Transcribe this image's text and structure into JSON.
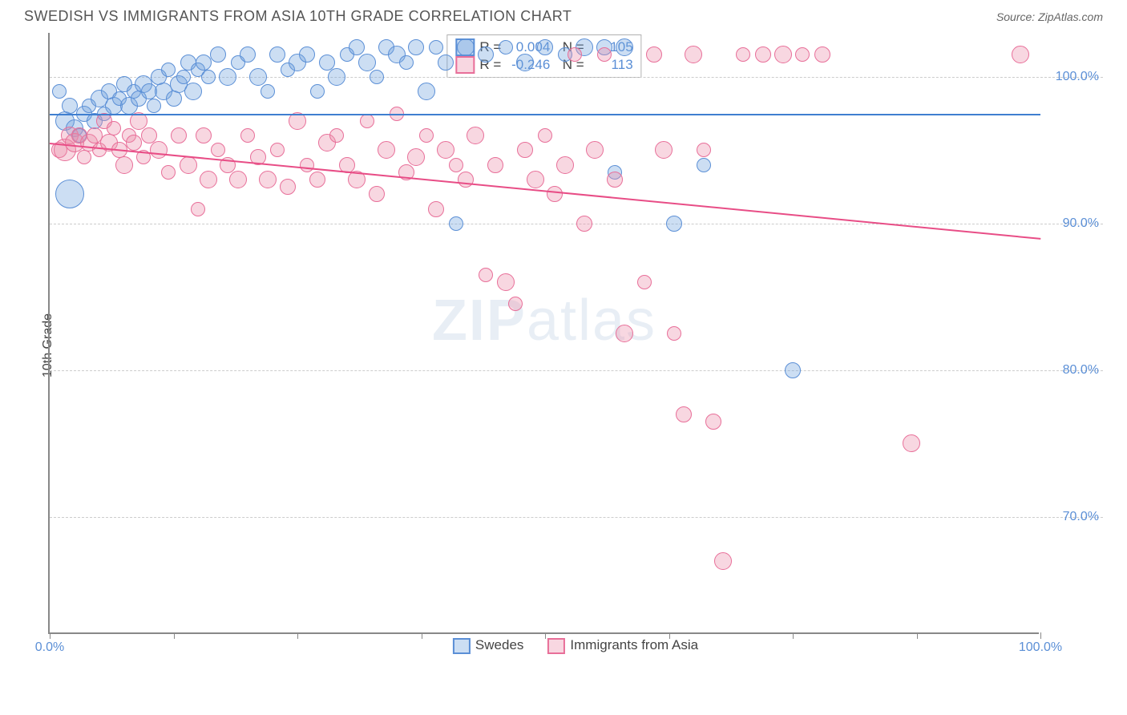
{
  "title": "SWEDISH VS IMMIGRANTS FROM ASIA 10TH GRADE CORRELATION CHART",
  "source": "Source: ZipAtlas.com",
  "y_axis_label": "10th Grade",
  "watermark": "ZIPatlas",
  "chart": {
    "type": "scatter",
    "xlim": [
      0,
      100
    ],
    "ylim": [
      62,
      103
    ],
    "y_ticks": [
      70,
      80,
      90,
      100
    ],
    "y_tick_labels": [
      "70.0%",
      "80.0%",
      "90.0%",
      "100.0%"
    ],
    "x_ticks": [
      0,
      12.5,
      25,
      37.5,
      50,
      62.5,
      75,
      87.5,
      100
    ],
    "x_tick_labels_shown": {
      "0": "0.0%",
      "100": "100.0%"
    },
    "grid_color": "#cccccc",
    "axis_color": "#888888",
    "background_color": "#ffffff",
    "tick_label_color": "#5b8fd6",
    "tick_label_fontsize": 16
  },
  "series": [
    {
      "name": "Swedes",
      "fill_color": "rgba(110, 160, 220, 0.35)",
      "stroke_color": "#5b8fd6",
      "R": "0.004",
      "N": "105",
      "trend": {
        "y_at_x0": 97.5,
        "y_at_x100": 97.5,
        "color": "#3f7fd0"
      },
      "points": [
        {
          "x": 1,
          "y": 99,
          "r": 9
        },
        {
          "x": 1.5,
          "y": 97,
          "r": 12
        },
        {
          "x": 2,
          "y": 98,
          "r": 10
        },
        {
          "x": 2,
          "y": 92,
          "r": 18
        },
        {
          "x": 2.5,
          "y": 96.5,
          "r": 11
        },
        {
          "x": 3,
          "y": 96,
          "r": 9
        },
        {
          "x": 3.5,
          "y": 97.5,
          "r": 10
        },
        {
          "x": 4,
          "y": 98,
          "r": 9
        },
        {
          "x": 4.5,
          "y": 97,
          "r": 10
        },
        {
          "x": 5,
          "y": 98.5,
          "r": 11
        },
        {
          "x": 5.5,
          "y": 97.5,
          "r": 9
        },
        {
          "x": 6,
          "y": 99,
          "r": 10
        },
        {
          "x": 6.5,
          "y": 98,
          "r": 11
        },
        {
          "x": 7,
          "y": 98.5,
          "r": 9
        },
        {
          "x": 7.5,
          "y": 99.5,
          "r": 10
        },
        {
          "x": 8,
          "y": 98,
          "r": 11
        },
        {
          "x": 8.5,
          "y": 99,
          "r": 9
        },
        {
          "x": 9,
          "y": 98.5,
          "r": 10
        },
        {
          "x": 9.5,
          "y": 99.5,
          "r": 11
        },
        {
          "x": 10,
          "y": 99,
          "r": 10
        },
        {
          "x": 10.5,
          "y": 98,
          "r": 9
        },
        {
          "x": 11,
          "y": 100,
          "r": 10
        },
        {
          "x": 11.5,
          "y": 99,
          "r": 11
        },
        {
          "x": 12,
          "y": 100.5,
          "r": 9
        },
        {
          "x": 12.5,
          "y": 98.5,
          "r": 10
        },
        {
          "x": 13,
          "y": 99.5,
          "r": 11
        },
        {
          "x": 13.5,
          "y": 100,
          "r": 9
        },
        {
          "x": 14,
          "y": 101,
          "r": 10
        },
        {
          "x": 14.5,
          "y": 99,
          "r": 11
        },
        {
          "x": 15,
          "y": 100.5,
          "r": 9
        },
        {
          "x": 15.5,
          "y": 101,
          "r": 10
        },
        {
          "x": 16,
          "y": 100,
          "r": 9
        },
        {
          "x": 17,
          "y": 101.5,
          "r": 10
        },
        {
          "x": 18,
          "y": 100,
          "r": 11
        },
        {
          "x": 19,
          "y": 101,
          "r": 9
        },
        {
          "x": 20,
          "y": 101.5,
          "r": 10
        },
        {
          "x": 21,
          "y": 100,
          "r": 11
        },
        {
          "x": 22,
          "y": 99,
          "r": 9
        },
        {
          "x": 23,
          "y": 101.5,
          "r": 10
        },
        {
          "x": 24,
          "y": 100.5,
          "r": 9
        },
        {
          "x": 25,
          "y": 101,
          "r": 11
        },
        {
          "x": 26,
          "y": 101.5,
          "r": 10
        },
        {
          "x": 27,
          "y": 99,
          "r": 9
        },
        {
          "x": 28,
          "y": 101,
          "r": 10
        },
        {
          "x": 29,
          "y": 100,
          "r": 11
        },
        {
          "x": 30,
          "y": 101.5,
          "r": 9
        },
        {
          "x": 31,
          "y": 102,
          "r": 10
        },
        {
          "x": 32,
          "y": 101,
          "r": 11
        },
        {
          "x": 33,
          "y": 100,
          "r": 9
        },
        {
          "x": 34,
          "y": 102,
          "r": 10
        },
        {
          "x": 35,
          "y": 101.5,
          "r": 11
        },
        {
          "x": 36,
          "y": 101,
          "r": 9
        },
        {
          "x": 37,
          "y": 102,
          "r": 10
        },
        {
          "x": 38,
          "y": 99,
          "r": 11
        },
        {
          "x": 39,
          "y": 102,
          "r": 9
        },
        {
          "x": 40,
          "y": 101,
          "r": 10
        },
        {
          "x": 41,
          "y": 90,
          "r": 9
        },
        {
          "x": 42,
          "y": 102,
          "r": 11
        },
        {
          "x": 44,
          "y": 101.5,
          "r": 10
        },
        {
          "x": 46,
          "y": 102,
          "r": 9
        },
        {
          "x": 48,
          "y": 101,
          "r": 11
        },
        {
          "x": 50,
          "y": 102,
          "r": 10
        },
        {
          "x": 52,
          "y": 101.5,
          "r": 9
        },
        {
          "x": 54,
          "y": 102,
          "r": 11
        },
        {
          "x": 56,
          "y": 102,
          "r": 10
        },
        {
          "x": 57,
          "y": 93.5,
          "r": 9
        },
        {
          "x": 58,
          "y": 102,
          "r": 11
        },
        {
          "x": 63,
          "y": 90,
          "r": 10
        },
        {
          "x": 66,
          "y": 94,
          "r": 9
        },
        {
          "x": 75,
          "y": 80,
          "r": 10
        }
      ]
    },
    {
      "name": "Immigrants from Asia",
      "fill_color": "rgba(235, 140, 170, 0.35)",
      "stroke_color": "#e86f99",
      "R": "-0.246",
      "N": "113",
      "trend": {
        "y_at_x0": 95.5,
        "y_at_x100": 89,
        "color": "#e84d86"
      },
      "points": [
        {
          "x": 1,
          "y": 95,
          "r": 10
        },
        {
          "x": 1.5,
          "y": 95,
          "r": 14
        },
        {
          "x": 2,
          "y": 96,
          "r": 11
        },
        {
          "x": 2.5,
          "y": 95.5,
          "r": 12
        },
        {
          "x": 3,
          "y": 96,
          "r": 10
        },
        {
          "x": 3.5,
          "y": 94.5,
          "r": 9
        },
        {
          "x": 4,
          "y": 95.5,
          "r": 11
        },
        {
          "x": 4.5,
          "y": 96,
          "r": 10
        },
        {
          "x": 5,
          "y": 95,
          "r": 9
        },
        {
          "x": 5.5,
          "y": 97,
          "r": 10
        },
        {
          "x": 6,
          "y": 95.5,
          "r": 11
        },
        {
          "x": 6.5,
          "y": 96.5,
          "r": 9
        },
        {
          "x": 7,
          "y": 95,
          "r": 10
        },
        {
          "x": 7.5,
          "y": 94,
          "r": 11
        },
        {
          "x": 8,
          "y": 96,
          "r": 9
        },
        {
          "x": 8.5,
          "y": 95.5,
          "r": 10
        },
        {
          "x": 9,
          "y": 97,
          "r": 11
        },
        {
          "x": 9.5,
          "y": 94.5,
          "r": 9
        },
        {
          "x": 10,
          "y": 96,
          "r": 10
        },
        {
          "x": 11,
          "y": 95,
          "r": 11
        },
        {
          "x": 12,
          "y": 93.5,
          "r": 9
        },
        {
          "x": 13,
          "y": 96,
          "r": 10
        },
        {
          "x": 14,
          "y": 94,
          "r": 11
        },
        {
          "x": 15,
          "y": 91,
          "r": 9
        },
        {
          "x": 15.5,
          "y": 96,
          "r": 10
        },
        {
          "x": 16,
          "y": 93,
          "r": 11
        },
        {
          "x": 17,
          "y": 95,
          "r": 9
        },
        {
          "x": 18,
          "y": 94,
          "r": 10
        },
        {
          "x": 19,
          "y": 93,
          "r": 11
        },
        {
          "x": 20,
          "y": 96,
          "r": 9
        },
        {
          "x": 21,
          "y": 94.5,
          "r": 10
        },
        {
          "x": 22,
          "y": 93,
          "r": 11
        },
        {
          "x": 23,
          "y": 95,
          "r": 9
        },
        {
          "x": 24,
          "y": 92.5,
          "r": 10
        },
        {
          "x": 25,
          "y": 97,
          "r": 11
        },
        {
          "x": 26,
          "y": 94,
          "r": 9
        },
        {
          "x": 27,
          "y": 93,
          "r": 10
        },
        {
          "x": 28,
          "y": 95.5,
          "r": 11
        },
        {
          "x": 29,
          "y": 96,
          "r": 9
        },
        {
          "x": 30,
          "y": 94,
          "r": 10
        },
        {
          "x": 31,
          "y": 93,
          "r": 11
        },
        {
          "x": 32,
          "y": 97,
          "r": 9
        },
        {
          "x": 33,
          "y": 92,
          "r": 10
        },
        {
          "x": 34,
          "y": 95,
          "r": 11
        },
        {
          "x": 35,
          "y": 97.5,
          "r": 9
        },
        {
          "x": 36,
          "y": 93.5,
          "r": 10
        },
        {
          "x": 37,
          "y": 94.5,
          "r": 11
        },
        {
          "x": 38,
          "y": 96,
          "r": 9
        },
        {
          "x": 39,
          "y": 91,
          "r": 10
        },
        {
          "x": 40,
          "y": 95,
          "r": 11
        },
        {
          "x": 41,
          "y": 94,
          "r": 9
        },
        {
          "x": 42,
          "y": 93,
          "r": 10
        },
        {
          "x": 43,
          "y": 96,
          "r": 11
        },
        {
          "x": 44,
          "y": 86.5,
          "r": 9
        },
        {
          "x": 45,
          "y": 94,
          "r": 10
        },
        {
          "x": 46,
          "y": 86,
          "r": 11
        },
        {
          "x": 47,
          "y": 84.5,
          "r": 9
        },
        {
          "x": 48,
          "y": 95,
          "r": 10
        },
        {
          "x": 49,
          "y": 93,
          "r": 11
        },
        {
          "x": 50,
          "y": 96,
          "r": 9
        },
        {
          "x": 51,
          "y": 92,
          "r": 10
        },
        {
          "x": 52,
          "y": 94,
          "r": 11
        },
        {
          "x": 53,
          "y": 101.5,
          "r": 9
        },
        {
          "x": 54,
          "y": 90,
          "r": 10
        },
        {
          "x": 55,
          "y": 95,
          "r": 11
        },
        {
          "x": 56,
          "y": 101.5,
          "r": 9
        },
        {
          "x": 57,
          "y": 93,
          "r": 10
        },
        {
          "x": 58,
          "y": 82.5,
          "r": 11
        },
        {
          "x": 60,
          "y": 86,
          "r": 9
        },
        {
          "x": 61,
          "y": 101.5,
          "r": 10
        },
        {
          "x": 62,
          "y": 95,
          "r": 11
        },
        {
          "x": 63,
          "y": 82.5,
          "r": 9
        },
        {
          "x": 64,
          "y": 77,
          "r": 10
        },
        {
          "x": 65,
          "y": 101.5,
          "r": 11
        },
        {
          "x": 66,
          "y": 95,
          "r": 9
        },
        {
          "x": 67,
          "y": 76.5,
          "r": 10
        },
        {
          "x": 68,
          "y": 67,
          "r": 11
        },
        {
          "x": 70,
          "y": 101.5,
          "r": 9
        },
        {
          "x": 72,
          "y": 101.5,
          "r": 10
        },
        {
          "x": 74,
          "y": 101.5,
          "r": 11
        },
        {
          "x": 76,
          "y": 101.5,
          "r": 9
        },
        {
          "x": 78,
          "y": 101.5,
          "r": 10
        },
        {
          "x": 87,
          "y": 75,
          "r": 11
        },
        {
          "x": 98,
          "y": 101.5,
          "r": 11
        }
      ]
    }
  ],
  "bottom_legend": [
    {
      "label": "Swedes",
      "fill": "rgba(110,160,220,0.35)",
      "stroke": "#5b8fd6"
    },
    {
      "label": "Immigrants from Asia",
      "fill": "rgba(235,140,170,0.35)",
      "stroke": "#e86f99"
    }
  ]
}
